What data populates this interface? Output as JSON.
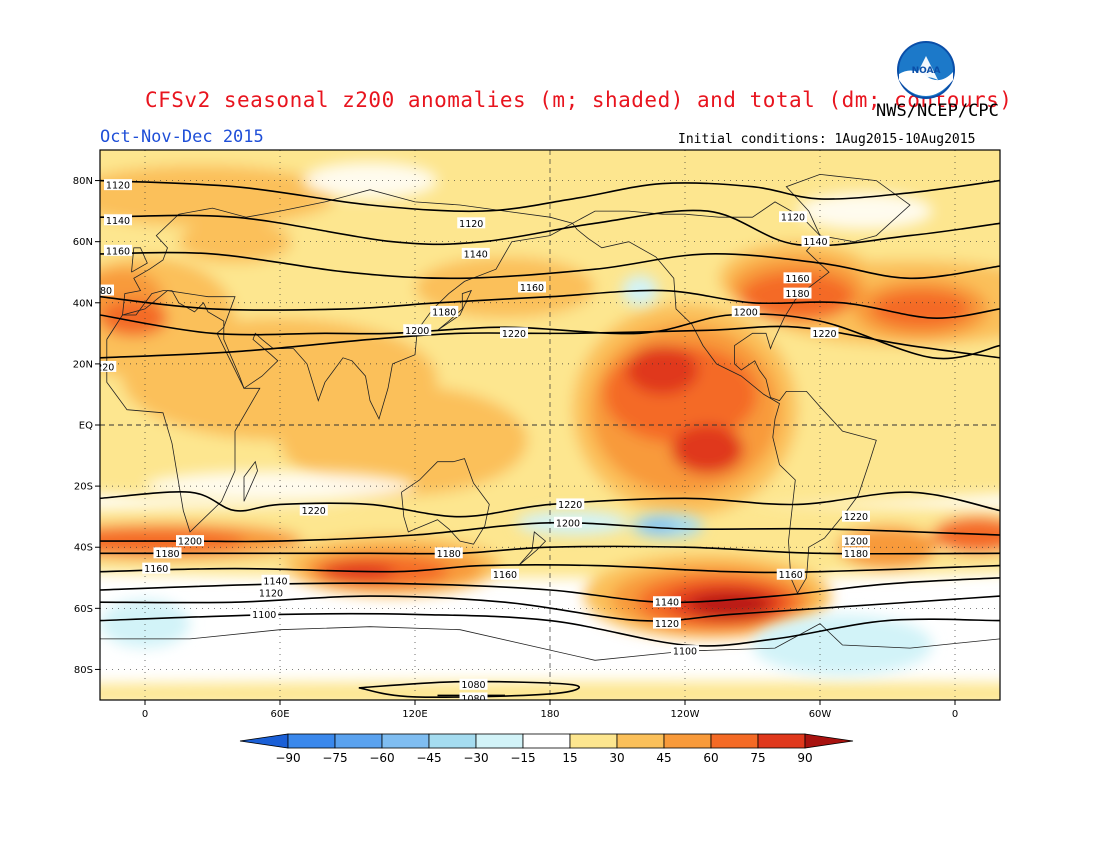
{
  "header": {
    "title": "CFSv2 seasonal z200 anomalies (m; shaded) and total (dm; contours)",
    "agency": "NWS/NCEP/CPC",
    "period": "Oct-Nov-Dec 2015",
    "initial_conditions": "Initial conditions: 1Aug2015-10Aug2015",
    "logo_text": "NOAA"
  },
  "colors": {
    "title": "#e8141e",
    "period": "#1f4fd8",
    "lvl_neg90": "#1e6be0",
    "lvl_neg75": "#3a88ec",
    "lvl_neg60": "#5aa2ef",
    "lvl_neg45": "#7fbdf1",
    "lvl_neg30": "#a5dcf0",
    "lvl_neg15": "#d2f3f8",
    "lvl_neutral": "#ffffff",
    "lvl_15": "#fde68f",
    "lvl_30": "#fbc05a",
    "lvl_45": "#f89a3a",
    "lvl_60": "#f46a25",
    "lvl_75": "#e0381c",
    "lvl_90": "#b81512"
  },
  "map": {
    "lat_labels": [
      "80N",
      "60N",
      "40N",
      "20N",
      "EQ",
      "20S",
      "40S",
      "60S",
      "80S"
    ],
    "lat_values": [
      80,
      60,
      40,
      20,
      0,
      -20,
      -40,
      -60,
      -80
    ],
    "lon_labels": [
      "0",
      "60E",
      "120E",
      "180",
      "120W",
      "60W",
      "0"
    ],
    "lon_values": [
      0,
      60,
      120,
      180,
      240,
      300,
      360
    ],
    "lon_range": [
      -20,
      380
    ],
    "lat_range": [
      -90,
      90
    ],
    "dateline_dashed": true,
    "equator_dashed": true
  },
  "colorbar": {
    "labels": [
      "-90",
      "-75",
      "-60",
      "-45",
      "-30",
      "-15",
      "15",
      "30",
      "45",
      "60",
      "75",
      "90"
    ],
    "units": "m"
  },
  "contours": [
    {
      "label": "1120",
      "points": [
        [
          -20,
          80
        ],
        [
          40,
          78
        ],
        [
          100,
          72
        ],
        [
          150,
          70
        ],
        [
          190,
          74
        ],
        [
          230,
          79
        ],
        [
          270,
          78
        ],
        [
          300,
          74
        ],
        [
          340,
          76
        ],
        [
          380,
          80
        ]
      ],
      "labels_at": [
        [
          -12,
          78.5
        ],
        [
          145,
          66
        ],
        [
          288,
          68
        ]
      ]
    },
    {
      "label": "1140",
      "points": [
        [
          -20,
          68
        ],
        [
          40,
          68
        ],
        [
          110,
          60
        ],
        [
          150,
          60
        ],
        [
          200,
          66
        ],
        [
          250,
          70
        ],
        [
          290,
          59
        ],
        [
          340,
          62
        ],
        [
          380,
          66
        ]
      ],
      "labels_at": [
        [
          -12,
          67
        ],
        [
          147,
          56
        ],
        [
          298,
          60
        ]
      ]
    },
    {
      "label": "1160",
      "points": [
        [
          -20,
          56
        ],
        [
          30,
          56
        ],
        [
          90,
          50
        ],
        [
          140,
          48
        ],
        [
          200,
          51
        ],
        [
          250,
          56
        ],
        [
          300,
          53
        ],
        [
          340,
          48
        ],
        [
          380,
          52
        ]
      ],
      "labels_at": [
        [
          -12,
          57
        ],
        [
          172,
          45
        ],
        [
          290,
          48
        ]
      ]
    },
    {
      "label": "1180",
      "points": [
        [
          -20,
          42
        ],
        [
          30,
          38
        ],
        [
          90,
          38
        ],
        [
          130,
          40
        ],
        [
          180,
          42
        ],
        [
          230,
          44
        ],
        [
          270,
          40
        ],
        [
          310,
          40
        ],
        [
          350,
          35
        ],
        [
          380,
          38
        ]
      ],
      "labels_at": [
        [
          -20,
          44
        ],
        [
          133,
          37
        ],
        [
          290,
          43
        ]
      ]
    },
    {
      "label": "1200",
      "points": [
        [
          -20,
          36
        ],
        [
          30,
          30
        ],
        [
          80,
          30
        ],
        [
          110,
          30
        ],
        [
          160,
          32
        ],
        [
          220,
          30
        ],
        [
          260,
          36
        ],
        [
          300,
          34
        ],
        [
          350,
          22
        ],
        [
          380,
          26
        ]
      ],
      "labels_at": [
        [
          121,
          31
        ],
        [
          267,
          37
        ]
      ]
    },
    {
      "label": "1220",
      "points": [
        [
          -20,
          22
        ],
        [
          40,
          24
        ],
        [
          100,
          28
        ],
        [
          140,
          30
        ],
        [
          190,
          30
        ],
        [
          250,
          31
        ],
        [
          290,
          32
        ],
        [
          340,
          26
        ],
        [
          380,
          22
        ]
      ],
      "labels_at": [
        [
          -19,
          19
        ],
        [
          164,
          30
        ],
        [
          302,
          30
        ]
      ]
    },
    {
      "label": "1220",
      "points": [
        [
          -20,
          -24
        ],
        [
          20,
          -22
        ],
        [
          40,
          -28
        ],
        [
          60,
          -26
        ],
        [
          100,
          -26
        ],
        [
          140,
          -30
        ],
        [
          180,
          -26
        ],
        [
          240,
          -24
        ],
        [
          290,
          -26
        ],
        [
          340,
          -22
        ],
        [
          380,
          -28
        ]
      ],
      "labels_at": [
        [
          75,
          -28
        ],
        [
          189,
          -26
        ],
        [
          316,
          -30
        ]
      ]
    },
    {
      "label": "1200",
      "points": [
        [
          -20,
          -38
        ],
        [
          20,
          -38
        ],
        [
          60,
          -38
        ],
        [
          120,
          -36
        ],
        [
          180,
          -32
        ],
        [
          240,
          -34
        ],
        [
          300,
          -34
        ],
        [
          380,
          -36
        ]
      ],
      "labels_at": [
        [
          20,
          -38
        ],
        [
          188,
          -32
        ],
        [
          316,
          -38
        ]
      ]
    },
    {
      "label": "1180",
      "points": [
        [
          -20,
          -42
        ],
        [
          40,
          -42
        ],
        [
          100,
          -42
        ],
        [
          140,
          -42
        ],
        [
          180,
          -40
        ],
        [
          240,
          -40
        ],
        [
          300,
          -42
        ],
        [
          380,
          -42
        ]
      ],
      "labels_at": [
        [
          10,
          -42
        ],
        [
          135,
          -42
        ],
        [
          316,
          -42
        ]
      ]
    },
    {
      "label": "1160",
      "points": [
        [
          -20,
          -48
        ],
        [
          40,
          -47
        ],
        [
          110,
          -48
        ],
        [
          150,
          -46
        ],
        [
          200,
          -46
        ],
        [
          260,
          -48
        ],
        [
          300,
          -48
        ],
        [
          380,
          -46
        ]
      ],
      "labels_at": [
        [
          5,
          -47
        ],
        [
          160,
          -49
        ],
        [
          287,
          -49
        ]
      ]
    },
    {
      "label": "1140",
      "points": [
        [
          -20,
          -54
        ],
        [
          60,
          -52
        ],
        [
          120,
          -52
        ],
        [
          180,
          -54
        ],
        [
          230,
          -58
        ],
        [
          280,
          -56
        ],
        [
          330,
          -52
        ],
        [
          380,
          -50
        ]
      ],
      "labels_at": [
        [
          58,
          -51
        ],
        [
          232,
          -58
        ]
      ]
    },
    {
      "label": "1120",
      "points": [
        [
          -20,
          -58
        ],
        [
          40,
          -58
        ],
        [
          100,
          -56
        ],
        [
          160,
          -58
        ],
        [
          220,
          -64
        ],
        [
          260,
          -62
        ],
        [
          300,
          -60
        ],
        [
          380,
          -56
        ]
      ],
      "labels_at": [
        [
          56,
          -55
        ],
        [
          232,
          -65
        ]
      ]
    },
    {
      "label": "1100",
      "points": [
        [
          -20,
          -64
        ],
        [
          60,
          -62
        ],
        [
          120,
          -62
        ],
        [
          180,
          -64
        ],
        [
          240,
          -72
        ],
        [
          280,
          -70
        ],
        [
          330,
          -64
        ],
        [
          380,
          -64
        ]
      ],
      "labels_at": [
        [
          53,
          -62
        ],
        [
          240,
          -74
        ]
      ]
    },
    {
      "label": "1080",
      "points": [
        [
          95,
          -86
        ],
        [
          140,
          -84
        ],
        [
          190,
          -85
        ],
        [
          180,
          -88
        ],
        [
          120,
          -89
        ],
        [
          95,
          -86
        ]
      ],
      "labels_at": [
        [
          146,
          -85
        ]
      ]
    },
    {
      "label": "1080",
      "points": [
        [
          130,
          -88.5
        ],
        [
          160,
          -88.5
        ]
      ],
      "labels_at": [
        [
          146,
          -89.5
        ]
      ]
    }
  ]
}
